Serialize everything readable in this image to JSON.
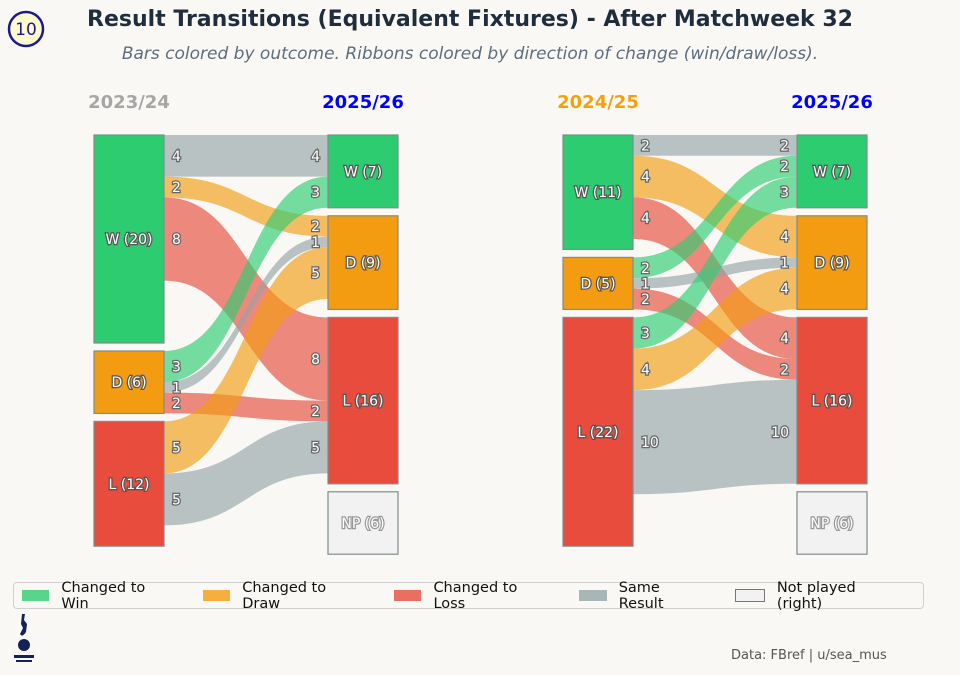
{
  "badge": "10",
  "title": "Result Transitions (Equivalent Fixtures) - After Matchweek 32",
  "subtitle": "Bars colored by outcome. Ribbons colored by direction of change (win/draw/loss).",
  "colors": {
    "win": "#2ecc71",
    "draw": "#f39c12",
    "loss": "#e74c3c",
    "same": "#95a5a6",
    "np": "#f2f2f2",
    "header_2023_24": "#a6a6a6",
    "header_2024_25": "#f5a00f",
    "header_2025_26": "#0000ff"
  },
  "chart_data": [
    {
      "type": "sankey",
      "left_header": "2023/24",
      "right_header": "2025/26",
      "left_nodes": [
        {
          "key": "W",
          "label": "W (20)",
          "value": 20
        },
        {
          "key": "D",
          "label": "D (6)",
          "value": 6
        },
        {
          "key": "L",
          "label": "L (12)",
          "value": 12
        }
      ],
      "right_nodes": [
        {
          "key": "W",
          "label": "W (7)",
          "value": 7
        },
        {
          "key": "D",
          "label": "D (9)",
          "value": 9
        },
        {
          "key": "L",
          "label": "L (16)",
          "value": 16
        },
        {
          "key": "NP",
          "label": "NP (6)",
          "value": 6
        }
      ],
      "flows": [
        {
          "from": "W",
          "to": "W",
          "value": 4,
          "kind": "same"
        },
        {
          "from": "W",
          "to": "D",
          "value": 2,
          "kind": "draw"
        },
        {
          "from": "W",
          "to": "L",
          "value": 8,
          "kind": "loss"
        },
        {
          "from": "D",
          "to": "W",
          "value": 3,
          "kind": "win"
        },
        {
          "from": "D",
          "to": "D",
          "value": 1,
          "kind": "same"
        },
        {
          "from": "D",
          "to": "L",
          "value": 2,
          "kind": "loss"
        },
        {
          "from": "L",
          "to": "D",
          "value": 5,
          "kind": "draw"
        },
        {
          "from": "L",
          "to": "L",
          "value": 5,
          "kind": "same"
        }
      ]
    },
    {
      "type": "sankey",
      "left_header": "2024/25",
      "right_header": "2025/26",
      "left_nodes": [
        {
          "key": "W",
          "label": "W (11)",
          "value": 11
        },
        {
          "key": "D",
          "label": "D (5)",
          "value": 5
        },
        {
          "key": "L",
          "label": "L (22)",
          "value": 22
        }
      ],
      "right_nodes": [
        {
          "key": "W",
          "label": "W (7)",
          "value": 7
        },
        {
          "key": "D",
          "label": "D (9)",
          "value": 9
        },
        {
          "key": "L",
          "label": "L (16)",
          "value": 16
        },
        {
          "key": "NP",
          "label": "NP (6)",
          "value": 6
        }
      ],
      "flows": [
        {
          "from": "W",
          "to": "W",
          "value": 2,
          "kind": "same"
        },
        {
          "from": "W",
          "to": "D",
          "value": 4,
          "kind": "draw"
        },
        {
          "from": "W",
          "to": "L",
          "value": 4,
          "kind": "loss"
        },
        {
          "from": "D",
          "to": "W",
          "value": 2,
          "kind": "win"
        },
        {
          "from": "D",
          "to": "D",
          "value": 1,
          "kind": "same"
        },
        {
          "from": "D",
          "to": "L",
          "value": 2,
          "kind": "loss"
        },
        {
          "from": "L",
          "to": "W",
          "value": 3,
          "kind": "win"
        },
        {
          "from": "L",
          "to": "D",
          "value": 4,
          "kind": "draw"
        },
        {
          "from": "L",
          "to": "L",
          "value": 10,
          "kind": "same"
        }
      ]
    }
  ],
  "legend": [
    {
      "label": "Changed to Win",
      "kind": "win"
    },
    {
      "label": "Changed to Draw",
      "kind": "draw"
    },
    {
      "label": "Changed to Loss",
      "kind": "loss"
    },
    {
      "label": "Same Result",
      "kind": "same"
    },
    {
      "label": "Not played (right)",
      "kind": "np"
    }
  ],
  "credit": "Data: FBref | u/sea_mus",
  "logo": "Tottenham Hotspur"
}
